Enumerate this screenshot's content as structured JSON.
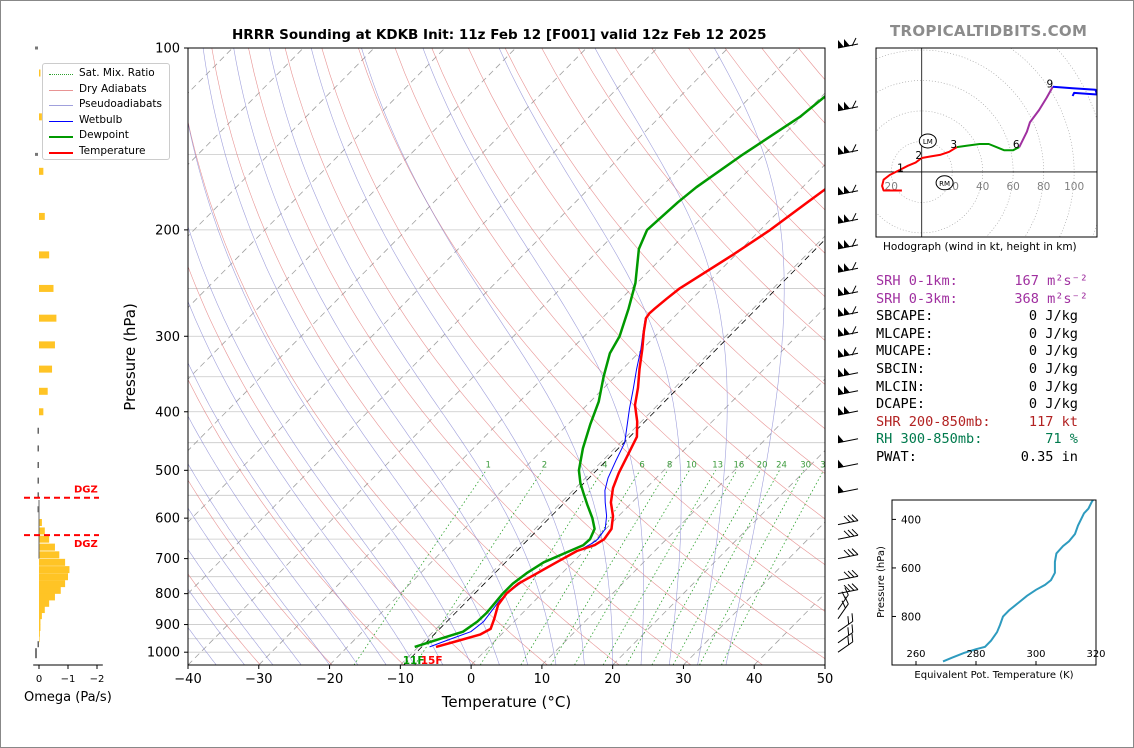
{
  "title": "HRRR Sounding at KDKB Init: 11z Feb 12 [F001] valid 12z Feb 12 2025",
  "brand": "TROPICALTIDBITS.COM",
  "hodograph_caption": "Hodograph (wind in kt, height in km)",
  "omega_label": "Omega (Pa/s)",
  "dgz_label": "DGZ",
  "surface_labels": {
    "dewpoint": "11F",
    "temperature": "15F"
  },
  "legend": [
    {
      "label": "Sat. Mix. Ratio",
      "color": "#2ca02c",
      "style": "dotted"
    },
    {
      "label": "Dry Adiabats",
      "color": "#e07070",
      "style": "solid-thin"
    },
    {
      "label": "Pseudoadiabats",
      "color": "#8080d0",
      "style": "solid-thin"
    },
    {
      "label": "Wetbulb",
      "color": "#0000ff",
      "style": "solid"
    },
    {
      "label": "Dewpoint",
      "color": "#009900",
      "style": "thick"
    },
    {
      "label": "Temperature",
      "color": "#ff0000",
      "style": "thick"
    }
  ],
  "colors": {
    "temperature": "#ff0000",
    "dewpoint": "#009900",
    "wetbulb": "#0000ff",
    "omega_bar": "#ffc425",
    "theta_e": "#2e9bbf",
    "srh": "#a030a0",
    "shear": "#b22222",
    "rh": "#007a4d",
    "dgz": "#ff0000"
  },
  "stats": [
    {
      "label": "SRH 0-1km:",
      "value": "167",
      "unit": "m²s⁻²",
      "color": "#a030a0"
    },
    {
      "label": "SRH 0-3km:",
      "value": "368",
      "unit": "m²s⁻²",
      "color": "#a030a0"
    },
    {
      "label": "SBCAPE:",
      "value": "0 J/kg",
      "unit": "",
      "color": "#000000"
    },
    {
      "label": "MLCAPE:",
      "value": "0 J/kg",
      "unit": "",
      "color": "#000000"
    },
    {
      "label": "MUCAPE:",
      "value": "0 J/kg",
      "unit": "",
      "color": "#000000"
    },
    {
      "label": "SBCIN:",
      "value": "0 J/kg",
      "unit": "",
      "color": "#000000"
    },
    {
      "label": "MLCIN:",
      "value": "0 J/kg",
      "unit": "",
      "color": "#000000"
    },
    {
      "label": "DCAPE:",
      "value": "0 J/kg",
      "unit": "",
      "color": "#000000"
    },
    {
      "label": "SHR 200-850mb:",
      "value": "117 kt",
      "unit": "",
      "color": "#b22222"
    },
    {
      "label": "RH 300-850mb:",
      "value": "71 %",
      "unit": "",
      "color": "#007a4d"
    },
    {
      "label": "PWAT:",
      "value": "0.35 in",
      "unit": "",
      "color": "#000000"
    }
  ],
  "chart_data": [
    {
      "type": "line",
      "name": "skew-t",
      "xlabel": "Temperature (°C)",
      "ylabel": "Pressure (hPa)",
      "xlim": [
        -40,
        50
      ],
      "ylim": [
        1050,
        100
      ],
      "x_ticks": [
        -40,
        -30,
        -20,
        -10,
        0,
        10,
        20,
        30,
        40,
        50
      ],
      "x_tick_labels": [
        "−40",
        "−30",
        "−20",
        "−10",
        "0",
        "10",
        "20",
        "30",
        "40",
        "50"
      ],
      "y_ticks": [
        100,
        200,
        300,
        400,
        500,
        600,
        700,
        800,
        900,
        1000
      ],
      "y_tick_labels": [
        "100",
        "200",
        "300",
        "400",
        "500",
        "600",
        "700",
        "800",
        "900",
        "1000"
      ],
      "mixing_ratio_labels": [
        "1",
        "2",
        "4",
        "6",
        "8",
        "10",
        "13",
        "16",
        "20",
        "24",
        "30",
        "36"
      ],
      "temperature": [
        [
          -7.5,
          980
        ],
        [
          -5.5,
          960
        ],
        [
          -3,
          935
        ],
        [
          -2.3,
          915
        ],
        [
          -3.2,
          880
        ],
        [
          -4.6,
          835
        ],
        [
          -5,
          800
        ],
        [
          -4.7,
          770
        ],
        [
          -3.5,
          740
        ],
        [
          -2.3,
          710
        ],
        [
          -1,
          680
        ],
        [
          0.7,
          665
        ],
        [
          1.2,
          650
        ],
        [
          0.8,
          625
        ],
        [
          -0.8,
          595
        ],
        [
          -3,
          565
        ],
        [
          -4.7,
          535
        ],
        [
          -6,
          505
        ],
        [
          -7.3,
          470
        ],
        [
          -8.5,
          440
        ],
        [
          -10.6,
          415
        ],
        [
          -13.2,
          390
        ],
        [
          -15.2,
          365
        ],
        [
          -17.6,
          340
        ],
        [
          -20,
          315
        ],
        [
          -22.2,
          295
        ],
        [
          -23.8,
          280
        ],
        [
          -24,
          275
        ],
        [
          -23.9,
          270
        ],
        [
          -23.6,
          260
        ],
        [
          -23.2,
          250
        ],
        [
          -20.4,
          220
        ],
        [
          -18.6,
          200
        ],
        [
          -17.2,
          180
        ],
        [
          -16,
          165
        ],
        [
          -12,
          140
        ],
        [
          -8,
          117
        ],
        [
          -5,
          108
        ],
        [
          -3,
          100
        ]
      ],
      "dewpoint": [
        [
          -10.5,
          980
        ],
        [
          -8,
          950
        ],
        [
          -5.8,
          925
        ],
        [
          -5.2,
          890
        ],
        [
          -5.1,
          860
        ],
        [
          -5.3,
          830
        ],
        [
          -5.5,
          800
        ],
        [
          -5.5,
          770
        ],
        [
          -5,
          740
        ],
        [
          -4.1,
          710
        ],
        [
          -2,
          680
        ],
        [
          -0.9,
          665
        ],
        [
          -0.8,
          650
        ],
        [
          -1.6,
          625
        ],
        [
          -3.4,
          600
        ],
        [
          -6,
          570
        ],
        [
          -8.2,
          545
        ],
        [
          -10,
          525
        ],
        [
          -12,
          500
        ],
        [
          -14.5,
          460
        ],
        [
          -16.8,
          420
        ],
        [
          -18.8,
          385
        ],
        [
          -21.6,
          350
        ],
        [
          -24,
          320
        ],
        [
          -25,
          300
        ],
        [
          -27.6,
          270
        ],
        [
          -30.2,
          245
        ],
        [
          -34.5,
          215
        ],
        [
          -36,
          200
        ],
        [
          -35.5,
          180
        ],
        [
          -35,
          170
        ],
        [
          -33,
          150
        ],
        [
          -30.2,
          130
        ],
        [
          -29.5,
          120
        ],
        [
          -27,
          108
        ],
        [
          -26,
          100
        ]
      ],
      "wetbulb": [
        [
          -8.4,
          980
        ],
        [
          -6.8,
          955
        ],
        [
          -4.7,
          925
        ],
        [
          -4.3,
          890
        ],
        [
          -4.7,
          850
        ],
        [
          -5,
          820
        ],
        [
          -4.8,
          790
        ],
        [
          -4.3,
          760
        ],
        [
          -3.3,
          730
        ],
        [
          -2,
          700
        ],
        [
          -0.6,
          675
        ],
        [
          0.1,
          660
        ],
        [
          0.3,
          650
        ],
        [
          -0.1,
          625
        ],
        [
          -1.7,
          595
        ],
        [
          -3.8,
          565
        ],
        [
          -5.5,
          540
        ],
        [
          -6.8,
          515
        ],
        [
          -8.2,
          480
        ],
        [
          -9.4,
          450
        ],
        [
          -11.2,
          425
        ],
        [
          -13.5,
          395
        ],
        [
          -15.6,
          368
        ],
        [
          -18,
          340
        ],
        [
          -20.2,
          315
        ],
        [
          -22.3,
          295
        ],
        [
          -23.9,
          280
        ],
        [
          -24,
          275
        ],
        [
          -23.6,
          260
        ],
        [
          -23.3,
          250
        ],
        [
          -20.4,
          220
        ],
        [
          -18.5,
          200
        ],
        [
          -17.1,
          180
        ],
        [
          -15.8,
          165
        ],
        [
          -11.8,
          140
        ],
        [
          -7.8,
          117
        ],
        [
          -4.8,
          108
        ],
        [
          -2.8,
          100
        ]
      ],
      "wind_barbs_p": [
        1000,
        965,
        925,
        880,
        850,
        800,
        760,
        700,
        650,
        615,
        545,
        495,
        450,
        405,
        375,
        350,
        325,
        300,
        278,
        257,
        235,
        215,
        195,
        175,
        150,
        127,
        100
      ]
    },
    {
      "type": "line",
      "name": "hodograph",
      "xlabel": "",
      "ylabel": "",
      "xlim": [
        -30,
        115
      ],
      "ylim": [
        -42,
        80
      ],
      "ring_labels": [
        "20",
        "20",
        "40",
        "60",
        "80",
        "100"
      ],
      "height_labels": [
        "1",
        "2",
        "3",
        "6",
        "9"
      ],
      "markers": [
        "LM",
        "RM"
      ],
      "segments": [
        {
          "color": "#ff0000",
          "points": [
            [
              -13,
              -12
            ],
            [
              -25,
              -12
            ],
            [
              -26,
              -9
            ],
            [
              -25,
              -5
            ],
            [
              -21,
              -2
            ],
            [
              -15,
              1
            ],
            [
              -9,
              4
            ],
            [
              -4,
              6
            ],
            [
              0,
              9
            ]
          ]
        },
        {
          "color": "#ff0000",
          "points": [
            [
              0,
              9
            ],
            [
              6,
              10
            ],
            [
              12,
              11
            ],
            [
              18,
              13
            ],
            [
              23,
              16
            ]
          ]
        },
        {
          "color": "#009900",
          "points": [
            [
              23,
              16
            ],
            [
              30,
              17
            ],
            [
              38,
              18
            ],
            [
              44,
              18
            ],
            [
              49,
              16
            ],
            [
              54,
              14
            ],
            [
              60,
              14
            ],
            [
              64,
              16
            ]
          ]
        },
        {
          "color": "#a030a0",
          "points": [
            [
              64,
              16
            ],
            [
              69,
              26
            ],
            [
              71,
              32
            ],
            [
              77,
              40
            ],
            [
              82,
              48
            ],
            [
              86,
              55
            ]
          ]
        },
        {
          "color": "#0000ff",
          "points": [
            [
              86,
              55
            ],
            [
              99,
              54
            ],
            [
              114,
              53
            ],
            [
              115,
              50
            ],
            [
              100,
              51
            ],
            [
              99,
              49
            ]
          ]
        }
      ]
    },
    {
      "type": "line",
      "name": "equivalent-potential-temperature",
      "xlabel": "Equivalent Pot. Temperature (K)",
      "ylabel": "Pressure (hPa)",
      "xlim": [
        252,
        320
      ],
      "ylim": [
        1000,
        320
      ],
      "x_ticks": [
        260,
        280,
        300,
        320
      ],
      "x_tick_labels": [
        "260",
        "280",
        "300",
        "320"
      ],
      "y_ticks": [
        400,
        600,
        800
      ],
      "y_tick_labels": [
        "400",
        "600",
        "800"
      ],
      "series": [
        {
          "values": [
            [
              269,
              985
            ],
            [
              272,
              970
            ],
            [
              276,
              950
            ],
            [
              280,
              935
            ],
            [
              283,
              925
            ],
            [
              285,
              900
            ],
            [
              287,
              865
            ],
            [
              288,
              835
            ],
            [
              289,
              800
            ],
            [
              291,
              775
            ],
            [
              294,
              745
            ],
            [
              297,
              715
            ],
            [
              300,
              690
            ],
            [
              303,
              670
            ],
            [
              305,
              650
            ],
            [
              306.3,
              620
            ],
            [
              306.3,
              575
            ],
            [
              306.8,
              540
            ],
            [
              309,
              510
            ],
            [
              311,
              490
            ],
            [
              313,
              460
            ],
            [
              314,
              425
            ],
            [
              316,
              375
            ],
            [
              317.5,
              355
            ],
            [
              318.5,
              330
            ],
            [
              319,
              320
            ]
          ]
        }
      ]
    },
    {
      "type": "bar",
      "name": "omega-profile",
      "xlabel": "Omega (Pa/s)",
      "xlim": [
        0.3,
        -2.3
      ],
      "x_ticks": [
        0,
        -1,
        -2
      ],
      "x_tick_labels": [
        "0",
        "−1",
        "−2"
      ],
      "dgz_pressure": [
        555,
        640
      ],
      "categories_p": [
        970,
        950,
        930,
        910,
        890,
        870,
        850,
        830,
        810,
        790,
        770,
        750,
        730,
        710,
        690,
        670,
        650,
        630,
        610,
        580,
        550,
        520,
        490,
        460,
        430,
        400,
        370,
        340,
        310,
        280,
        250,
        220,
        190,
        160,
        130,
        110
      ],
      "values": [
        0.0,
        -0.02,
        -0.03,
        -0.05,
        -0.05,
        -0.1,
        -0.2,
        -0.35,
        -0.55,
        -0.75,
        -0.9,
        -1.0,
        -1.05,
        -0.9,
        -0.7,
        -0.55,
        -0.35,
        -0.2,
        -0.1,
        0.0,
        0.0,
        0.0,
        0.0,
        0.0,
        0.0,
        -0.15,
        -0.3,
        -0.45,
        -0.55,
        -0.6,
        -0.5,
        -0.35,
        -0.2,
        -0.15,
        -0.1,
        -0.05
      ]
    }
  ]
}
